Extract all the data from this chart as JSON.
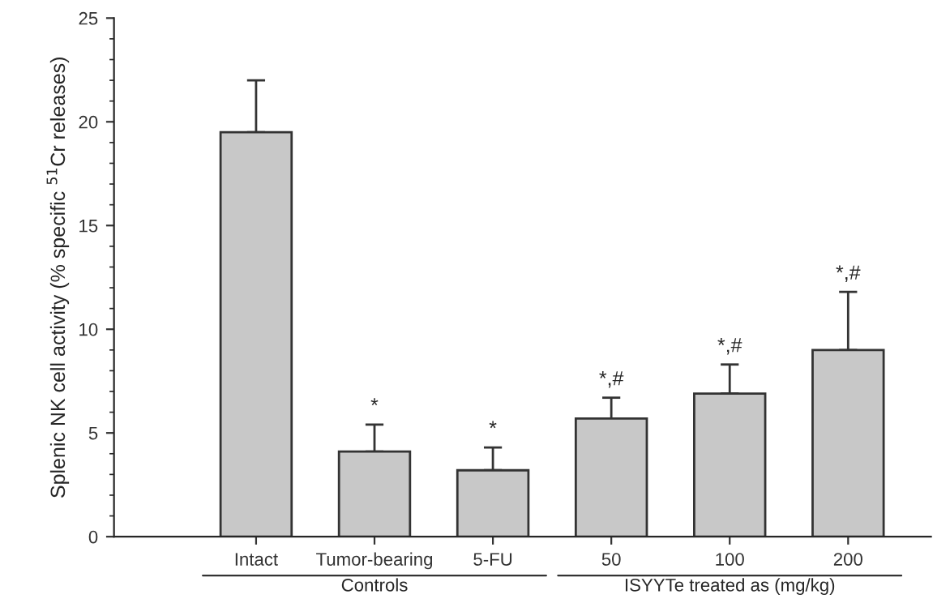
{
  "chart_data": {
    "type": "bar",
    "ylabel": "Splenic NK cell activity (% specific $^{51}$Cr releases)",
    "categories": [
      "Intact",
      "Tumor-bearing",
      "5-FU",
      "50",
      "100",
      "200"
    ],
    "values": [
      19.5,
      4.1,
      3.2,
      5.7,
      6.9,
      9.0
    ],
    "errors": [
      [
        19.5,
        22.0
      ],
      [
        4.1,
        5.4
      ],
      [
        3.2,
        4.3
      ],
      [
        5.7,
        6.7
      ],
      [
        6.9,
        8.3
      ],
      [
        9.0,
        11.8
      ]
    ],
    "color": "#c8c8c8",
    "ylim": [
      0,
      25
    ],
    "yticks": [
      0,
      5,
      10,
      15,
      20,
      25
    ],
    "grid": false,
    "annotations": [
      "*",
      "*",
      "*,#",
      "*,#",
      "*,#",
      "Controls",
      "ISYYTe treated as (mg/kg)"
    ]
  }
}
